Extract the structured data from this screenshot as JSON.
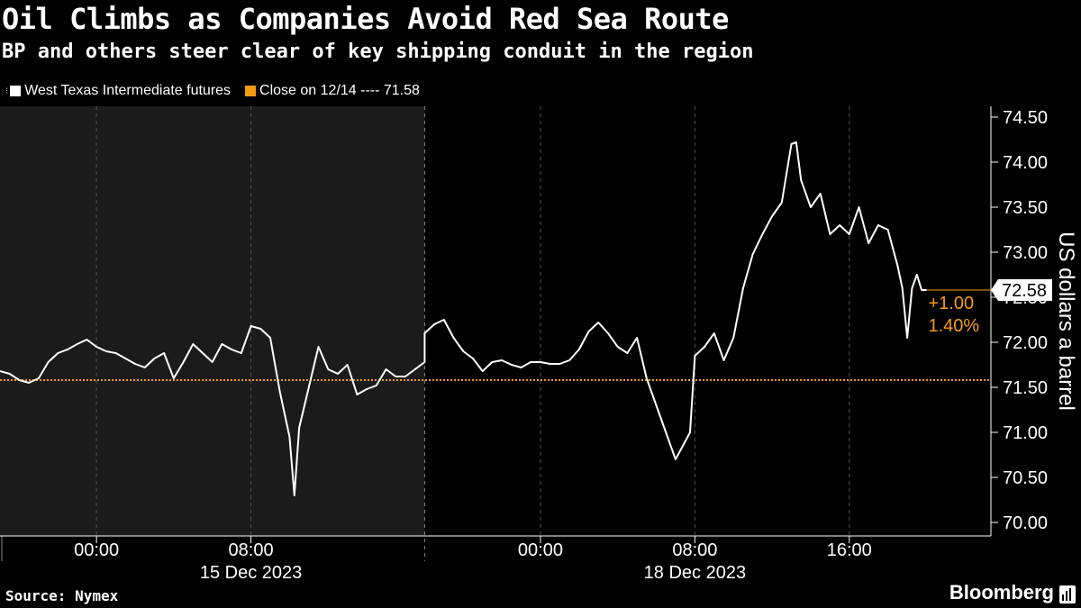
{
  "header": {
    "title": "Oil Climbs as Companies Avoid Red Sea Route",
    "subtitle": "BP and others steer clear of key shipping conduit in the region"
  },
  "legend": {
    "series_label": "West Texas Intermediate futures",
    "close_label": "Close on 12/14 ---- 71.58"
  },
  "footer": {
    "source": "Source: Nymex",
    "brand": "Bloomberg"
  },
  "colors": {
    "background": "#000000",
    "shaded_region": "#1b1b1b",
    "line": "#ffffff",
    "accent": "#f39c12"
  },
  "chart_data": {
    "type": "line",
    "ylabel": "US dollars a barrel",
    "ylim": [
      70.0,
      74.5
    ],
    "y_ticks": [
      70.0,
      70.5,
      71.0,
      71.5,
      72.0,
      72.5,
      73.0,
      73.5,
      74.0,
      74.5
    ],
    "y_tick_labels": [
      "70.00",
      "70.50",
      "71.00",
      "71.50",
      "72.00",
      "72.50",
      "73.00",
      "73.50",
      "74.00",
      "74.50"
    ],
    "xlim": [
      "2023-12-14T19:00",
      "2023-12-18T20:00"
    ],
    "x_ticks": [
      {
        "t": "2023-12-15T00:00",
        "label": "00:00"
      },
      {
        "t": "2023-12-15T08:00",
        "label": "08:00"
      },
      {
        "t": "2023-12-18T00:00",
        "label": "00:00"
      },
      {
        "t": "2023-12-18T08:00",
        "label": "08:00"
      },
      {
        "t": "2023-12-18T16:00",
        "label": "16:00"
      }
    ],
    "date_labels": [
      {
        "t": "2023-12-15T08:00",
        "label": "15 Dec 2023"
      },
      {
        "t": "2023-12-18T08:00",
        "label": "18 Dec 2023"
      }
    ],
    "session_break": "2023-12-15T17:00",
    "resume": "2023-12-17T18:00",
    "reference_line": {
      "label": "Close on 12/14",
      "value": 71.58
    },
    "last_value": 72.58,
    "last_label": "72.58",
    "change_labels": [
      "+1.00",
      "1.40%"
    ],
    "series": [
      {
        "name": "West Texas Intermediate futures",
        "points": [
          [
            "2023-12-14T19:00",
            71.68
          ],
          [
            "2023-12-14T19:30",
            71.65
          ],
          [
            "2023-12-14T20:00",
            71.58
          ],
          [
            "2023-12-14T20:30",
            71.55
          ],
          [
            "2023-12-14T21:00",
            71.6
          ],
          [
            "2023-12-14T21:30",
            71.78
          ],
          [
            "2023-12-14T22:00",
            71.88
          ],
          [
            "2023-12-14T22:30",
            71.92
          ],
          [
            "2023-12-14T23:00",
            71.98
          ],
          [
            "2023-12-14T23:30",
            72.03
          ],
          [
            "2023-12-15T00:00",
            71.95
          ],
          [
            "2023-12-15T00:30",
            71.9
          ],
          [
            "2023-12-15T01:00",
            71.88
          ],
          [
            "2023-12-15T01:30",
            71.82
          ],
          [
            "2023-12-15T02:00",
            71.76
          ],
          [
            "2023-12-15T02:30",
            71.72
          ],
          [
            "2023-12-15T03:00",
            71.82
          ],
          [
            "2023-12-15T03:30",
            71.88
          ],
          [
            "2023-12-15T04:00",
            71.6
          ],
          [
            "2023-12-15T04:30",
            71.78
          ],
          [
            "2023-12-15T05:00",
            71.98
          ],
          [
            "2023-12-15T05:30",
            71.88
          ],
          [
            "2023-12-15T06:00",
            71.78
          ],
          [
            "2023-12-15T06:30",
            71.98
          ],
          [
            "2023-12-15T07:00",
            71.92
          ],
          [
            "2023-12-15T07:30",
            71.88
          ],
          [
            "2023-12-15T08:00",
            72.18
          ],
          [
            "2023-12-15T08:30",
            72.15
          ],
          [
            "2023-12-15T09:00",
            72.05
          ],
          [
            "2023-12-15T09:30",
            71.45
          ],
          [
            "2023-12-15T10:00",
            70.95
          ],
          [
            "2023-12-15T10:15",
            70.3
          ],
          [
            "2023-12-15T10:30",
            71.05
          ],
          [
            "2023-12-15T11:00",
            71.5
          ],
          [
            "2023-12-15T11:30",
            71.95
          ],
          [
            "2023-12-15T12:00",
            71.7
          ],
          [
            "2023-12-15T12:30",
            71.65
          ],
          [
            "2023-12-15T13:00",
            71.75
          ],
          [
            "2023-12-15T13:30",
            71.42
          ],
          [
            "2023-12-15T14:00",
            71.48
          ],
          [
            "2023-12-15T14:30",
            71.52
          ],
          [
            "2023-12-15T15:00",
            71.7
          ],
          [
            "2023-12-15T15:30",
            71.62
          ],
          [
            "2023-12-15T16:00",
            71.62
          ],
          [
            "2023-12-15T17:00",
            71.78
          ],
          [
            "2023-12-17T18:00",
            72.1
          ],
          [
            "2023-12-17T18:30",
            72.2
          ],
          [
            "2023-12-17T19:00",
            72.25
          ],
          [
            "2023-12-17T19:30",
            72.05
          ],
          [
            "2023-12-17T20:00",
            71.9
          ],
          [
            "2023-12-17T20:30",
            71.82
          ],
          [
            "2023-12-17T21:00",
            71.68
          ],
          [
            "2023-12-17T21:30",
            71.78
          ],
          [
            "2023-12-17T22:00",
            71.8
          ],
          [
            "2023-12-17T22:30",
            71.75
          ],
          [
            "2023-12-17T23:00",
            71.72
          ],
          [
            "2023-12-17T23:30",
            71.78
          ],
          [
            "2023-12-18T00:00",
            71.78
          ],
          [
            "2023-12-18T00:30",
            71.76
          ],
          [
            "2023-12-18T01:00",
            71.76
          ],
          [
            "2023-12-18T01:30",
            71.8
          ],
          [
            "2023-12-18T02:00",
            71.92
          ],
          [
            "2023-12-18T02:30",
            72.12
          ],
          [
            "2023-12-18T03:00",
            72.22
          ],
          [
            "2023-12-18T03:30",
            72.1
          ],
          [
            "2023-12-18T04:00",
            71.95
          ],
          [
            "2023-12-18T04:30",
            71.88
          ],
          [
            "2023-12-18T05:00",
            72.05
          ],
          [
            "2023-12-18T05:30",
            71.6
          ],
          [
            "2023-12-18T06:00",
            71.3
          ],
          [
            "2023-12-18T06:30",
            71.0
          ],
          [
            "2023-12-18T07:00",
            70.7
          ],
          [
            "2023-12-18T07:30",
            70.9
          ],
          [
            "2023-12-18T07:45",
            71.0
          ],
          [
            "2023-12-18T08:00",
            71.85
          ],
          [
            "2023-12-18T08:30",
            71.95
          ],
          [
            "2023-12-18T09:00",
            72.1
          ],
          [
            "2023-12-18T09:30",
            71.8
          ],
          [
            "2023-12-18T10:00",
            72.05
          ],
          [
            "2023-12-18T10:30",
            72.6
          ],
          [
            "2023-12-18T11:00",
            72.98
          ],
          [
            "2023-12-18T11:30",
            73.2
          ],
          [
            "2023-12-18T12:00",
            73.4
          ],
          [
            "2023-12-18T12:30",
            73.55
          ],
          [
            "2023-12-18T13:00",
            74.2
          ],
          [
            "2023-12-18T13:15",
            74.22
          ],
          [
            "2023-12-18T13:30",
            73.8
          ],
          [
            "2023-12-18T14:00",
            73.5
          ],
          [
            "2023-12-18T14:30",
            73.65
          ],
          [
            "2023-12-18T15:00",
            73.2
          ],
          [
            "2023-12-18T15:30",
            73.3
          ],
          [
            "2023-12-18T16:00",
            73.2
          ],
          [
            "2023-12-18T16:30",
            73.5
          ],
          [
            "2023-12-18T17:00",
            73.1
          ],
          [
            "2023-12-18T17:30",
            73.3
          ],
          [
            "2023-12-18T18:00",
            73.25
          ],
          [
            "2023-12-18T18:30",
            72.85
          ],
          [
            "2023-12-18T18:45",
            72.6
          ],
          [
            "2023-12-18T19:00",
            72.05
          ],
          [
            "2023-12-18T19:15",
            72.6
          ],
          [
            "2023-12-18T19:30",
            72.75
          ],
          [
            "2023-12-18T19:45",
            72.58
          ],
          [
            "2023-12-18T20:00",
            72.58
          ]
        ]
      }
    ]
  }
}
